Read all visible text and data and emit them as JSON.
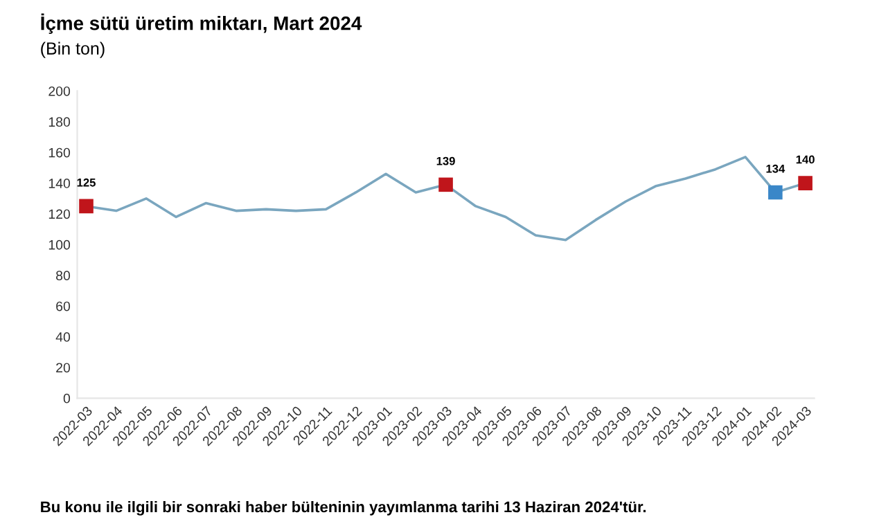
{
  "chart_data": {
    "type": "line",
    "title": "İçme sütü üretim miktarı, Mart 2024",
    "subtitle": "(Bin ton)",
    "categories": [
      "2022-03",
      "2022-04",
      "2022-05",
      "2022-06",
      "2022-07",
      "2022-08",
      "2022-09",
      "2022-10",
      "2022-11",
      "2022-12",
      "2023-01",
      "2023-02",
      "2023-03",
      "2023-04",
      "2023-05",
      "2023-06",
      "2023-07",
      "2023-08",
      "2023-09",
      "2023-10",
      "2023-11",
      "2023-12",
      "2024-01",
      "2024-02",
      "2024-03"
    ],
    "series": [
      {
        "color": "#7aa6bf",
        "values": [
          125,
          122,
          130,
          118,
          127,
          122,
          123,
          122,
          123,
          134,
          146,
          134,
          139,
          125,
          118,
          106,
          103,
          116,
          128,
          138,
          143,
          149,
          157,
          134,
          140
        ]
      },
      {
        "type": "scatter",
        "color": "#c0151b",
        "marker": "square",
        "values": [
          125,
          null,
          null,
          null,
          null,
          null,
          null,
          null,
          null,
          null,
          null,
          null,
          139,
          null,
          null,
          null,
          null,
          null,
          null,
          null,
          null,
          null,
          null,
          null,
          140
        ],
        "value_labels": [
          "125",
          null,
          null,
          null,
          null,
          null,
          null,
          null,
          null,
          null,
          null,
          null,
          "139",
          null,
          null,
          null,
          null,
          null,
          null,
          null,
          null,
          null,
          null,
          null,
          "140"
        ]
      },
      {
        "type": "scatter",
        "color": "#3a87c8",
        "marker": "square",
        "values": [
          null,
          null,
          null,
          null,
          null,
          null,
          null,
          null,
          null,
          null,
          null,
          null,
          null,
          null,
          null,
          null,
          null,
          null,
          null,
          null,
          null,
          null,
          null,
          134,
          null
        ],
        "value_labels": [
          null,
          null,
          null,
          null,
          null,
          null,
          null,
          null,
          null,
          null,
          null,
          null,
          null,
          null,
          null,
          null,
          null,
          null,
          null,
          null,
          null,
          null,
          null,
          "134",
          null
        ]
      }
    ],
    "ylim": [
      0,
      200
    ],
    "yticks": [
      0,
      20,
      40,
      60,
      80,
      100,
      120,
      140,
      160,
      180,
      200
    ],
    "grid": false,
    "annotations": [
      "Bu konu ile ilgili bir sonraki haber bülteninin yayımlanma tarihi 13 Haziran 2024'tür."
    ]
  }
}
